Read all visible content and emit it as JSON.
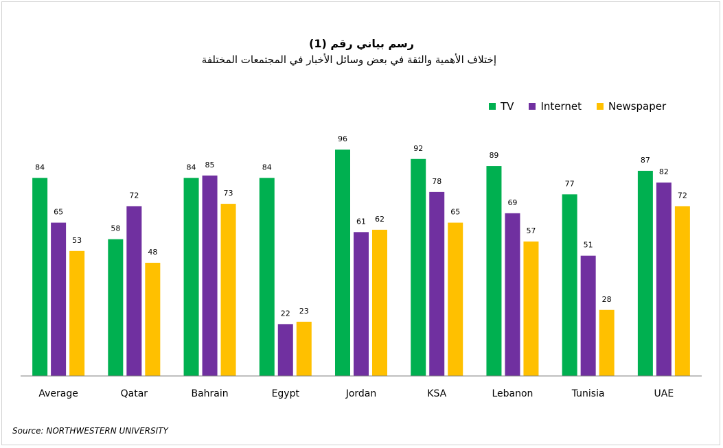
{
  "title": "رسم بياني رقم (1)",
  "subtitle": "إختلاف الأهمية والثقة في بعض وسائل الأخبار في المجتمعات المختلفة",
  "source": "Source: NORTHWESTERN UNIVERSITY",
  "colors": {
    "tv": "#00b050",
    "internet": "#7030a0",
    "newspaper": "#ffc000"
  },
  "chart_data": {
    "type": "bar",
    "title": "رسم بياني رقم (1)",
    "subtitle": "إختلاف الأهمية والثقة في بعض وسائل الأخبار في المجتمعات المختلفة",
    "categories": [
      "Average",
      "Qatar",
      "Bahrain",
      "Egypt",
      "Jordan",
      "KSA",
      "Lebanon",
      "Tunisia",
      "UAE"
    ],
    "series": [
      {
        "name": "TV",
        "color": "#00b050",
        "values": [
          84,
          58,
          84,
          84,
          96,
          92,
          89,
          77,
          87
        ]
      },
      {
        "name": "Internet",
        "color": "#7030a0",
        "values": [
          65,
          72,
          85,
          22,
          61,
          78,
          69,
          51,
          82
        ]
      },
      {
        "name": "Newspaper",
        "color": "#ffc000",
        "values": [
          53,
          48,
          73,
          23,
          62,
          65,
          57,
          28,
          72
        ]
      }
    ],
    "ylim": [
      0,
      100
    ],
    "grid": false,
    "legend": "top-right",
    "xlabel": "",
    "ylabel": ""
  }
}
